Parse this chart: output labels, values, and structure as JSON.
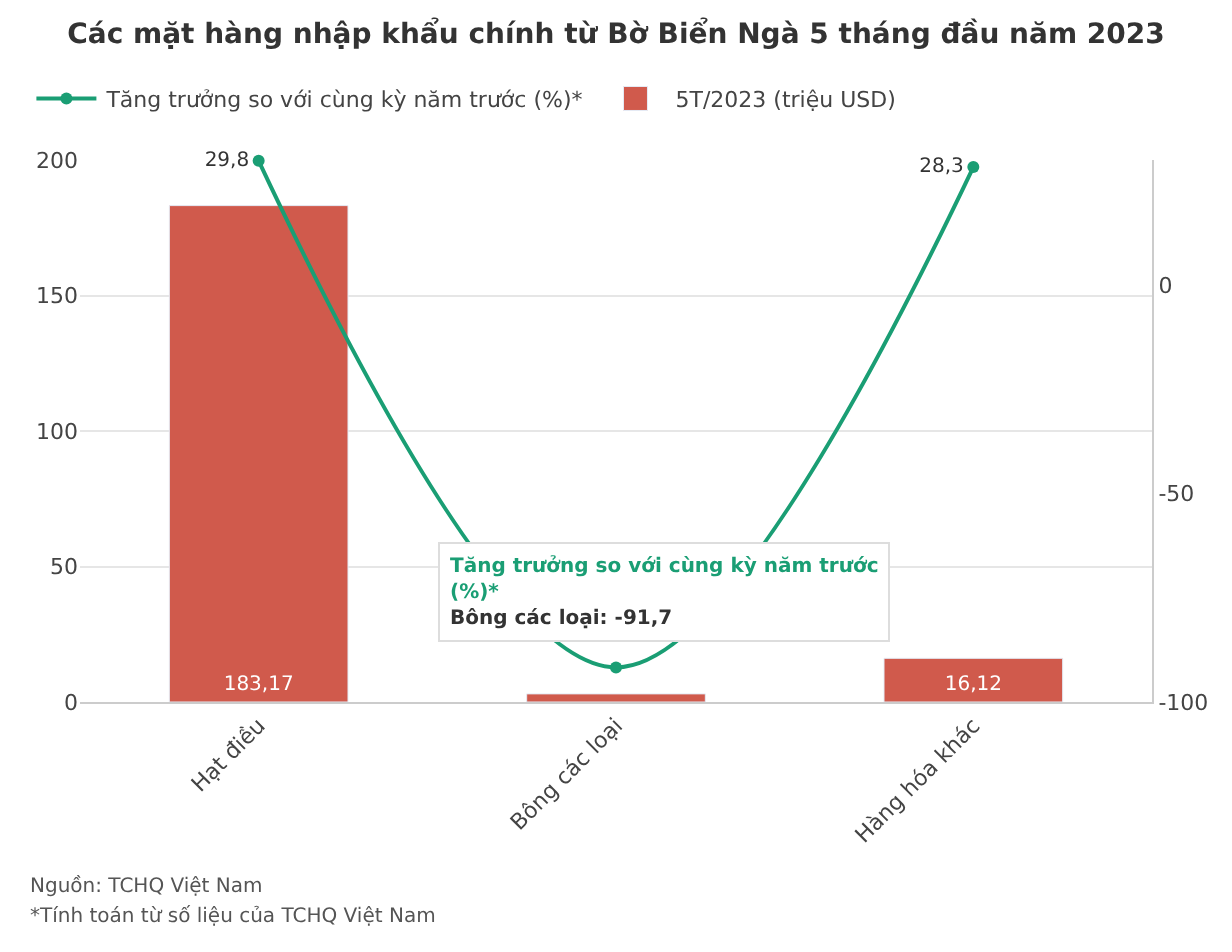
{
  "chart_data": {
    "type": "bar",
    "title": "Các mặt hàng nhập khẩu chính từ Bờ Biển Ngà 5 tháng đầu năm 2023",
    "categories": [
      "Hạt điều",
      "Bông các loại",
      "Hàng hóa khác"
    ],
    "series": [
      {
        "name": "Tăng trưởng so với cùng kỳ năm trước (%)*",
        "type": "line",
        "axis": "y2",
        "color": "#1a9e74",
        "values": [
          29.8,
          -91.7,
          28.3
        ],
        "value_labels": [
          "29,8",
          null,
          "28,3"
        ]
      },
      {
        "name": "5T/2023 (triệu USD)",
        "color": "#d05a4c",
        "values": [
          183.17,
          3,
          16.12
        ],
        "value_labels": [
          "183,17",
          null,
          "16,12"
        ]
      }
    ],
    "ylim": [
      0,
      200
    ],
    "yticks": [
      0,
      50,
      100,
      150,
      200
    ],
    "y2lim": [
      -100,
      30
    ],
    "y2ticks": [
      -100,
      -50,
      0
    ],
    "grid": "y",
    "legend": "top left",
    "marker": "circle",
    "line_style": "solid",
    "annotations": [
      "Nguồn: TCHQ Việt Nam",
      "*Tính toán từ số liệu của TCHQ Việt Nam",
      "Tăng trưởng so với cùng kỳ năm trước\n(%)*\nBông các loại: -91,7"
    ]
  }
}
